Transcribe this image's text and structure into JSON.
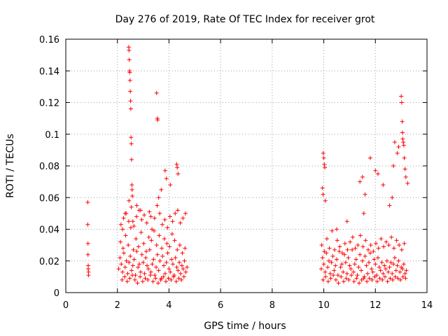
{
  "chart_data": {
    "type": "scatter",
    "title": "Day 276 of 2019, Rate Of TEC Index for receiver grot",
    "xlabel": "GPS time / hours",
    "ylabel": "ROTI / TECUs",
    "xlim": [
      0,
      14
    ],
    "ylim": [
      0,
      0.16
    ],
    "x_ticks": [
      "0",
      "2",
      "4",
      "6",
      "8",
      "10",
      "12",
      "14"
    ],
    "y_ticks": [
      "0",
      "0.02",
      "0.04",
      "0.06",
      "0.08",
      "0.1",
      "0.12",
      "0.14",
      "0.16"
    ],
    "grid": true,
    "marker": "+",
    "marker_color": "#ff0000",
    "series": [
      {
        "name": "ROTI",
        "x": [
          0.85,
          0.85,
          0.86,
          0.86,
          0.87,
          0.87,
          0.88,
          0.88,
          2.05,
          2.1,
          2.15,
          2.2,
          2.25,
          2.3,
          2.35,
          2.4,
          2.45,
          2.5,
          2.55,
          2.6,
          2.65,
          2.7,
          2.75,
          2.8,
          2.85,
          2.9,
          2.95,
          3.0,
          3.05,
          3.1,
          3.15,
          3.2,
          3.25,
          3.3,
          3.35,
          3.4,
          3.45,
          3.5,
          3.55,
          3.6,
          3.65,
          3.7,
          3.75,
          3.8,
          3.85,
          3.9,
          3.95,
          4.0,
          4.05,
          4.1,
          4.15,
          4.2,
          4.25,
          4.3,
          4.35,
          4.4,
          4.45,
          4.5,
          4.55,
          4.6,
          4.65,
          4.7,
          2.12,
          2.22,
          2.32,
          2.42,
          2.52,
          2.62,
          2.72,
          2.82,
          2.92,
          3.02,
          3.12,
          3.22,
          3.32,
          3.42,
          3.52,
          3.62,
          3.72,
          3.82,
          3.92,
          4.02,
          4.12,
          4.22,
          4.32,
          4.42,
          4.52,
          4.62,
          2.18,
          2.28,
          2.38,
          2.48,
          2.58,
          2.68,
          2.78,
          2.88,
          2.98,
          3.08,
          3.18,
          3.28,
          3.38,
          3.48,
          3.58,
          3.68,
          3.78,
          3.88,
          3.98,
          4.08,
          4.18,
          4.28,
          4.38,
          4.48,
          4.58,
          2.14,
          2.24,
          2.34,
          2.44,
          2.54,
          2.64,
          2.74,
          2.84,
          2.94,
          3.04,
          3.14,
          3.24,
          3.34,
          3.44,
          3.54,
          3.64,
          3.74,
          3.84,
          3.94,
          4.04,
          4.14,
          4.24,
          4.34,
          4.44,
          4.54,
          4.64,
          2.44,
          2.45,
          2.46,
          2.47,
          2.48,
          2.49,
          2.5,
          2.51,
          2.52,
          2.53,
          2.54,
          2.55,
          2.56,
          2.57,
          2.58,
          3.52,
          3.55,
          3.56,
          2.2,
          2.3,
          2.45,
          2.6,
          2.75,
          2.9,
          3.3,
          3.6,
          3.7,
          3.85,
          3.9,
          4.05,
          4.3,
          4.32,
          4.35,
          9.9,
          9.95,
          10.0,
          10.05,
          10.1,
          10.15,
          10.2,
          10.25,
          10.3,
          10.35,
          10.4,
          10.45,
          10.5,
          10.55,
          10.6,
          10.65,
          10.7,
          10.75,
          10.8,
          10.85,
          10.9,
          10.95,
          11.0,
          11.05,
          11.1,
          11.15,
          11.2,
          11.25,
          11.3,
          11.35,
          11.4,
          11.45,
          11.5,
          11.55,
          11.6,
          11.65,
          11.7,
          11.75,
          11.8,
          11.85,
          11.9,
          11.95,
          12.0,
          12.05,
          12.1,
          12.15,
          12.2,
          12.25,
          12.3,
          12.35,
          12.4,
          12.45,
          12.5,
          12.55,
          12.6,
          12.65,
          12.7,
          12.75,
          12.8,
          12.85,
          12.9,
          12.95,
          13.0,
          13.05,
          13.1,
          13.15,
          13.2,
          9.92,
          10.02,
          10.12,
          10.22,
          10.32,
          10.42,
          10.52,
          10.62,
          10.72,
          10.82,
          10.92,
          11.02,
          11.12,
          11.22,
          11.32,
          11.42,
          11.52,
          11.62,
          11.72,
          11.82,
          11.92,
          12.02,
          12.12,
          12.22,
          12.32,
          12.42,
          12.52,
          12.62,
          12.72,
          12.82,
          12.92,
          13.02,
          13.12,
          9.97,
          10.07,
          10.17,
          10.27,
          10.37,
          10.47,
          10.57,
          10.67,
          10.77,
          10.87,
          10.97,
          11.07,
          11.17,
          11.27,
          11.37,
          11.47,
          11.57,
          11.67,
          11.77,
          11.87,
          11.97,
          12.07,
          12.17,
          12.27,
          12.37,
          12.47,
          12.57,
          12.67,
          12.77,
          12.87,
          12.97,
          13.07,
          13.17,
          9.98,
          10.0,
          10.02,
          10.04,
          9.95,
          9.97,
          10.06,
          10.5,
          10.9,
          11.4,
          11.5,
          11.6,
          11.8,
          11.55,
          12.0,
          12.1,
          12.3,
          12.55,
          12.65,
          12.7,
          12.75,
          12.85,
          12.9,
          13.0,
          13.02,
          13.04,
          13.05,
          13.06,
          13.08,
          13.1,
          13.12,
          13.15,
          13.18,
          13.25
        ],
        "y": [
          0.057,
          0.043,
          0.031,
          0.024,
          0.017,
          0.015,
          0.013,
          0.011,
          0.015,
          0.022,
          0.018,
          0.013,
          0.025,
          0.016,
          0.02,
          0.012,
          0.019,
          0.023,
          0.014,
          0.017,
          0.021,
          0.011,
          0.026,
          0.016,
          0.018,
          0.013,
          0.024,
          0.019,
          0.012,
          0.022,
          0.017,
          0.015,
          0.027,
          0.013,
          0.018,
          0.021,
          0.011,
          0.016,
          0.024,
          0.014,
          0.02,
          0.009,
          0.023,
          0.017,
          0.012,
          0.019,
          0.025,
          0.015,
          0.013,
          0.021,
          0.018,
          0.011,
          0.022,
          0.016,
          0.014,
          0.019,
          0.012,
          0.017,
          0.015,
          0.02,
          0.013,
          0.016,
          0.032,
          0.028,
          0.036,
          0.03,
          0.041,
          0.027,
          0.034,
          0.029,
          0.038,
          0.031,
          0.026,
          0.035,
          0.033,
          0.039,
          0.03,
          0.036,
          0.028,
          0.034,
          0.031,
          0.029,
          0.037,
          0.033,
          0.027,
          0.03,
          0.025,
          0.028,
          0.008,
          0.01,
          0.007,
          0.009,
          0.011,
          0.008,
          0.006,
          0.01,
          0.007,
          0.009,
          0.008,
          0.011,
          0.007,
          0.009,
          0.006,
          0.008,
          0.01,
          0.007,
          0.009,
          0.008,
          0.01,
          0.007,
          0.009,
          0.008,
          0.01,
          0.043,
          0.047,
          0.05,
          0.045,
          0.054,
          0.042,
          0.048,
          0.052,
          0.046,
          0.049,
          0.044,
          0.051,
          0.04,
          0.047,
          0.055,
          0.05,
          0.043,
          0.046,
          0.041,
          0.048,
          0.045,
          0.05,
          0.052,
          0.044,
          0.047,
          0.05,
          0.155,
          0.153,
          0.147,
          0.14,
          0.139,
          0.134,
          0.127,
          0.121,
          0.116,
          0.098,
          0.094,
          0.084,
          0.068,
          0.065,
          0.061,
          0.126,
          0.11,
          0.109,
          0.04,
          0.05,
          0.058,
          0.045,
          0.055,
          0.052,
          0.048,
          0.06,
          0.065,
          0.077,
          0.072,
          0.068,
          0.081,
          0.079,
          0.075,
          0.015,
          0.022,
          0.018,
          0.013,
          0.025,
          0.016,
          0.02,
          0.012,
          0.019,
          0.023,
          0.014,
          0.017,
          0.021,
          0.011,
          0.026,
          0.016,
          0.018,
          0.013,
          0.024,
          0.019,
          0.012,
          0.022,
          0.017,
          0.015,
          0.027,
          0.013,
          0.018,
          0.021,
          0.011,
          0.016,
          0.024,
          0.014,
          0.02,
          0.009,
          0.023,
          0.017,
          0.012,
          0.019,
          0.025,
          0.015,
          0.013,
          0.021,
          0.018,
          0.011,
          0.022,
          0.016,
          0.014,
          0.019,
          0.012,
          0.017,
          0.015,
          0.02,
          0.013,
          0.016,
          0.019,
          0.012,
          0.018,
          0.022,
          0.014,
          0.017,
          0.02,
          0.013,
          0.016,
          0.015,
          0.018,
          0.012,
          0.014,
          0.03,
          0.026,
          0.034,
          0.028,
          0.039,
          0.027,
          0.033,
          0.029,
          0.025,
          0.031,
          0.027,
          0.032,
          0.035,
          0.028,
          0.03,
          0.036,
          0.029,
          0.033,
          0.027,
          0.03,
          0.026,
          0.031,
          0.028,
          0.034,
          0.029,
          0.032,
          0.03,
          0.035,
          0.028,
          0.033,
          0.03,
          0.027,
          0.031,
          0.008,
          0.01,
          0.007,
          0.009,
          0.011,
          0.008,
          0.006,
          0.01,
          0.007,
          0.009,
          0.008,
          0.011,
          0.007,
          0.009,
          0.006,
          0.008,
          0.01,
          0.007,
          0.009,
          0.008,
          0.01,
          0.007,
          0.009,
          0.008,
          0.01,
          0.007,
          0.009,
          0.008,
          0.01,
          0.009,
          0.008,
          0.01,
          0.009,
          0.088,
          0.085,
          0.081,
          0.079,
          0.066,
          0.062,
          0.058,
          0.04,
          0.045,
          0.07,
          0.073,
          0.062,
          0.085,
          0.05,
          0.077,
          0.075,
          0.068,
          0.055,
          0.06,
          0.08,
          0.095,
          0.088,
          0.092,
          0.124,
          0.12,
          0.108,
          0.101,
          0.097,
          0.095,
          0.093,
          0.085,
          0.078,
          0.073,
          0.069
        ]
      }
    ]
  }
}
